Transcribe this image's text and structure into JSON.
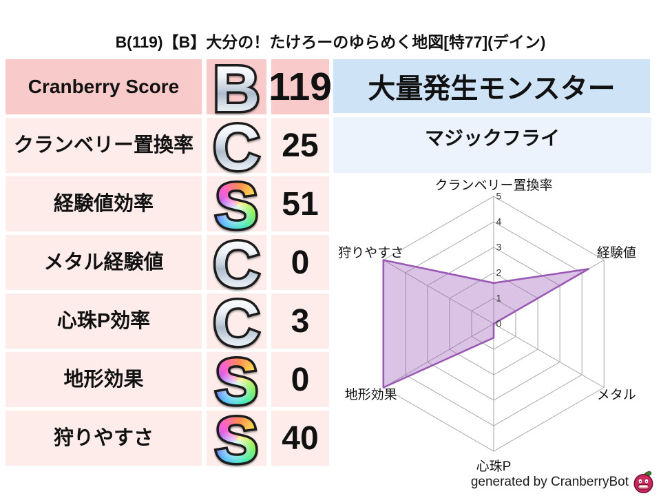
{
  "title": "B(119)【B】大分の！たけろーのゆらめく地図[特77](デイン)",
  "outbreak": {
    "header": "大量発生モンスター",
    "monster": "マジックフライ"
  },
  "footer": {
    "credit": "generated by CranberryBot"
  },
  "colors": {
    "highlight_row_bg": "#f8caca",
    "row_bg": "#fdecea",
    "panel_header_bg": "#cfe3f7",
    "panel_body_bg": "#ecf3fc",
    "radar_purple": "#9b59b6",
    "grid_gray": "#a6a6a6",
    "berry_red": "#cb2a5e",
    "leaf_green": "#3d7d2c"
  },
  "chart_data": [
    {
      "type": "radar",
      "axes": [
        "クランベリー置換率",
        "経験値",
        "メタル",
        "心珠P",
        "地形効果",
        "狩りやすさ"
      ],
      "values": [
        1.6,
        4.3,
        0,
        0.55,
        5,
        5
      ],
      "ticks": [
        0,
        1,
        2,
        3,
        4,
        5
      ],
      "rlim": [
        0,
        5
      ],
      "grid": true,
      "legend": "none",
      "stroke_color": "#9b59b6",
      "fill_color": "#9b59b6",
      "fill_opacity": 0.36
    },
    {
      "type": "table",
      "columns": [
        "stat",
        "grade",
        "value"
      ],
      "rows": [
        {
          "label": "Cranberry Score",
          "grade": "B",
          "grade_color": "silver",
          "value": "119",
          "highlight": true
        },
        {
          "label": "クランベリー置換率",
          "grade": "C",
          "grade_color": "silver",
          "value": "25",
          "highlight": false
        },
        {
          "label": "経験値効率",
          "grade": "S",
          "grade_color": "rainbow",
          "value": "51",
          "highlight": false
        },
        {
          "label": "メタル経験値",
          "grade": "C",
          "grade_color": "silver",
          "value": "0",
          "highlight": false
        },
        {
          "label": "心珠P効率",
          "grade": "C",
          "grade_color": "silver",
          "value": "3",
          "highlight": false
        },
        {
          "label": "地形効果",
          "grade": "S",
          "grade_color": "rainbow",
          "value": "0",
          "highlight": false
        },
        {
          "label": "狩りやすさ",
          "grade": "S",
          "grade_color": "rainbow",
          "value": "40",
          "highlight": false
        }
      ]
    }
  ]
}
